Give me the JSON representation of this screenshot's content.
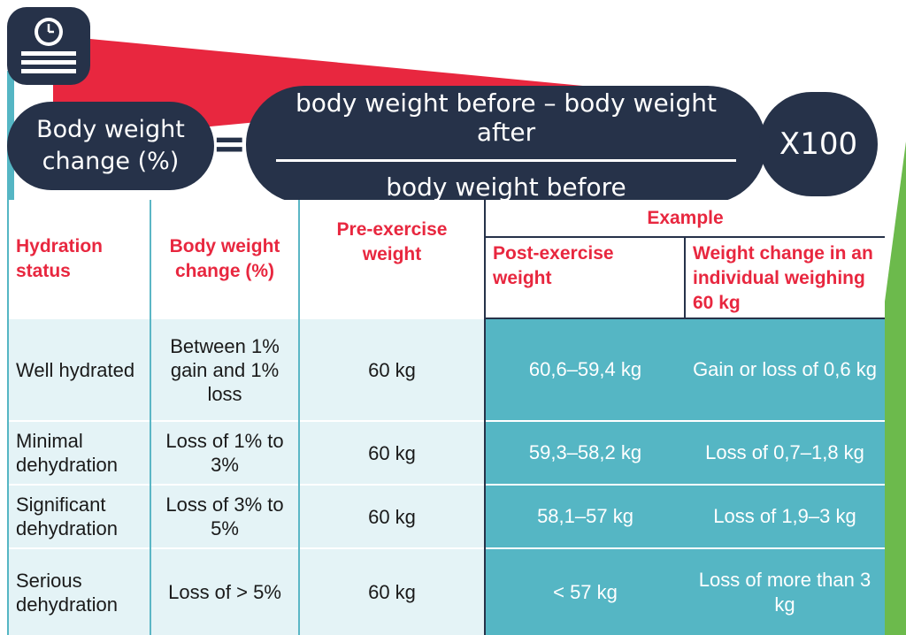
{
  "formula": {
    "lhs_line1": "Body weight",
    "lhs_line2": "change (%)",
    "equals": "=",
    "numerator": "body weight before – body weight after",
    "denominator": "body weight before",
    "multiplier": "X100"
  },
  "icons": {
    "scale": "bathroom-scale-icon"
  },
  "colors": {
    "navy": "#263249",
    "red": "#e8273f",
    "teal": "#55b6c4",
    "light_teal": "#e4f3f6",
    "green": "#6cba4c"
  },
  "table": {
    "headers": {
      "hydration_status": "Hydration status",
      "body_weight_change": "Body weight change (%)",
      "pre_exercise": "Pre-exercise weight",
      "example": "Example",
      "post_exercise": "Post-exercise weight",
      "weight_change": "Weight  change in an individual weighing 60 kg"
    },
    "rows": [
      {
        "status": "Well hydrated",
        "change": "Between 1% gain and 1% loss",
        "pre": "60 kg",
        "post": "60,6–59,4 kg",
        "example_change": "Gain or loss of 0,6 kg"
      },
      {
        "status": "Minimal dehydration",
        "change": "Loss of 1% to 3%",
        "pre": "60 kg",
        "post": "59,3–58,2 kg",
        "example_change": "Loss of 0,7–1,8 kg"
      },
      {
        "status": "Significant dehydration",
        "change": "Loss of 3% to 5%",
        "pre": "60 kg",
        "post": "58,1–57 kg",
        "example_change": "Loss of 1,9–3 kg"
      },
      {
        "status": "Serious dehydration",
        "change": "Loss of > 5%",
        "pre": "60 kg",
        "post": "< 57 kg",
        "example_change": "Loss of more than 3 kg"
      }
    ]
  }
}
